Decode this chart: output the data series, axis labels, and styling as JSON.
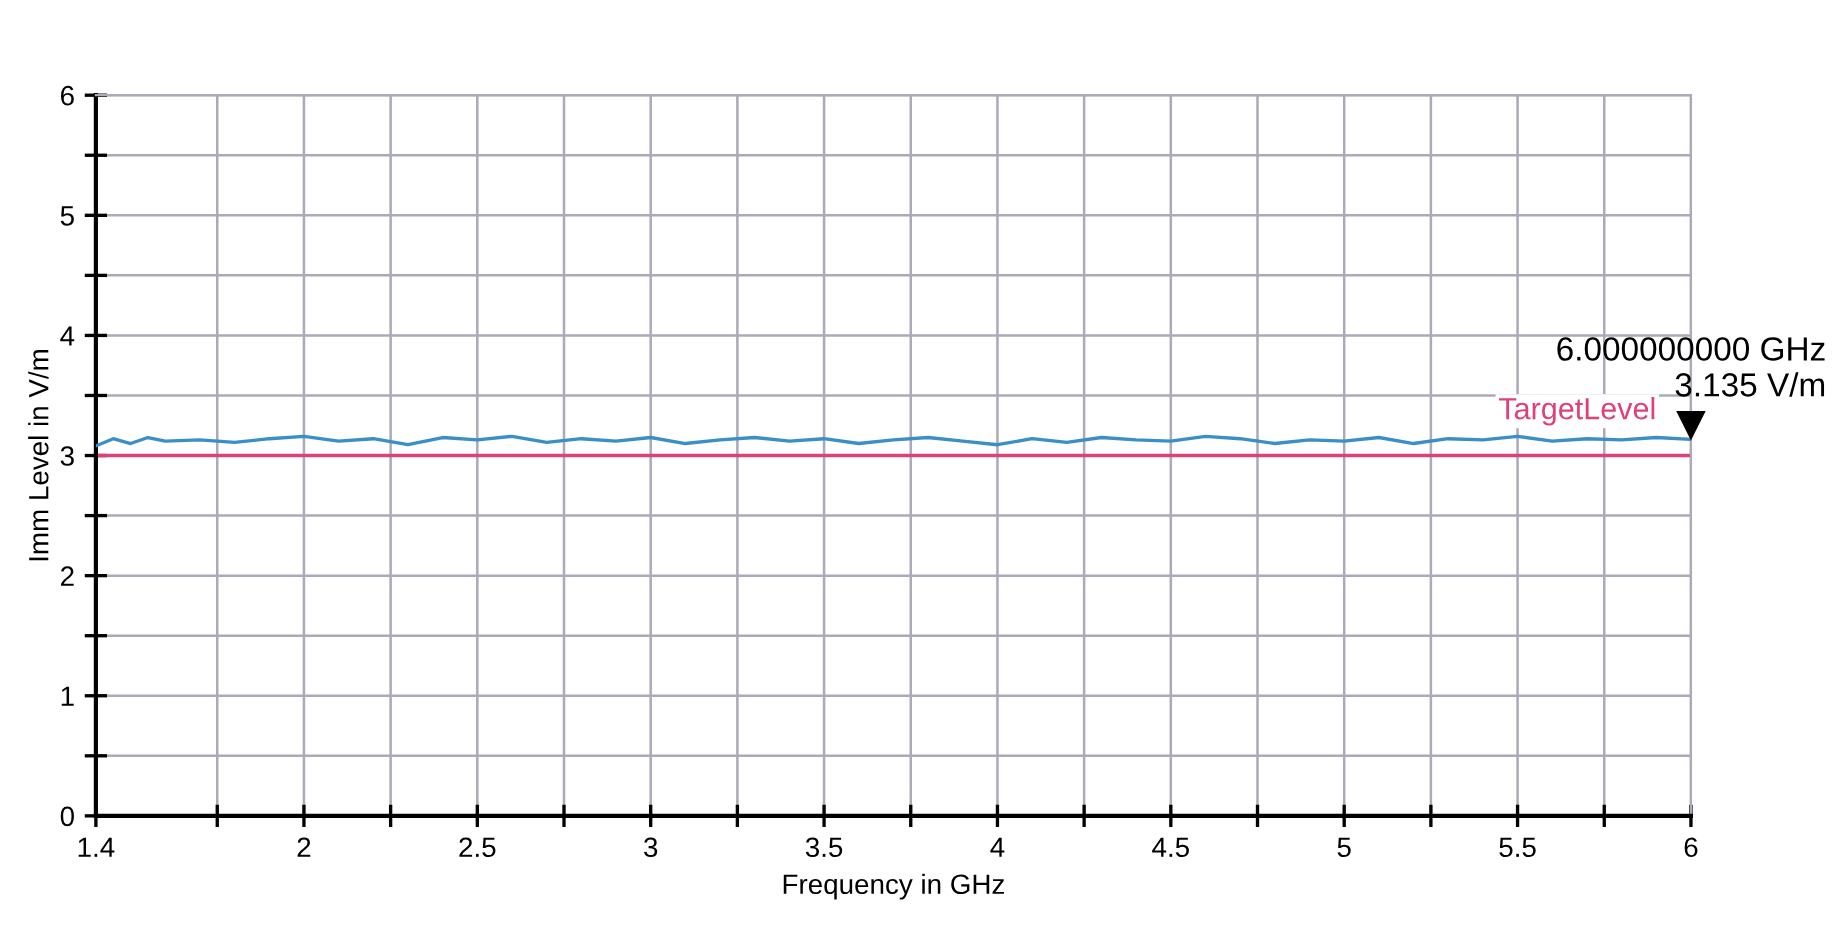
{
  "chart_data": {
    "type": "line",
    "xlabel": "Frequency in GHz",
    "ylabel": "Imm Level in V/m",
    "x": [
      1.4,
      1.45,
      1.5,
      1.55,
      1.6,
      1.7,
      1.8,
      1.9,
      2.0,
      2.1,
      2.2,
      2.3,
      2.4,
      2.5,
      2.6,
      2.7,
      2.8,
      2.9,
      3.0,
      3.1,
      3.2,
      3.3,
      3.4,
      3.5,
      3.6,
      3.7,
      3.8,
      3.9,
      4.0,
      4.1,
      4.2,
      4.3,
      4.4,
      4.5,
      4.6,
      4.7,
      4.8,
      4.9,
      5.0,
      5.1,
      5.2,
      5.3,
      5.4,
      5.5,
      5.6,
      5.7,
      5.8,
      5.9,
      6.0
    ],
    "series": [
      {
        "color": "#3a8fc8",
        "values": [
          3.08,
          3.14,
          3.1,
          3.15,
          3.12,
          3.13,
          3.11,
          3.14,
          3.16,
          3.12,
          3.14,
          3.09,
          3.15,
          3.13,
          3.16,
          3.11,
          3.14,
          3.12,
          3.15,
          3.1,
          3.13,
          3.15,
          3.12,
          3.14,
          3.1,
          3.13,
          3.15,
          3.12,
          3.09,
          3.14,
          3.11,
          3.15,
          3.13,
          3.12,
          3.16,
          3.14,
          3.1,
          3.13,
          3.12,
          3.15,
          3.1,
          3.14,
          3.13,
          3.16,
          3.12,
          3.14,
          3.13,
          3.15,
          3.135
        ]
      }
    ],
    "xlim": [
      1.4,
      6
    ],
    "ylim": [
      0,
      6
    ],
    "xticks": [
      1.4,
      {
        "value": 1.75,
        "label": null
      },
      2,
      {
        "value": 2.25,
        "label": null
      },
      2.5,
      {
        "value": 2.75,
        "label": null
      },
      3,
      {
        "value": 3.25,
        "label": null
      },
      3.5,
      {
        "value": 3.75,
        "label": null
      },
      4,
      {
        "value": 4.25,
        "label": null
      },
      4.5,
      {
        "value": 4.75,
        "label": null
      },
      5,
      {
        "value": 5.25,
        "label": null
      },
      5.5,
      {
        "value": 5.75,
        "label": null
      },
      6
    ],
    "yticks": [
      0,
      {
        "value": 0.5,
        "label": null
      },
      1,
      {
        "value": 1.5,
        "label": null
      },
      2,
      {
        "value": 2.5,
        "label": null
      },
      3,
      {
        "value": 3.5,
        "label": null
      },
      4,
      {
        "value": 4.5,
        "label": null
      },
      5,
      {
        "value": 5.5,
        "label": null
      },
      6
    ],
    "ref_lines": [
      {
        "axis": "y",
        "value": 3,
        "label": "TargetLevel",
        "color": "#e0407a"
      }
    ],
    "annotations": [
      {
        "text": "6.000000000 GHz\n3.135 V/m",
        "x": 6,
        "y": 3.135
      }
    ],
    "grid": true,
    "legend": false,
    "marker": "none",
    "line_style": "solid"
  }
}
